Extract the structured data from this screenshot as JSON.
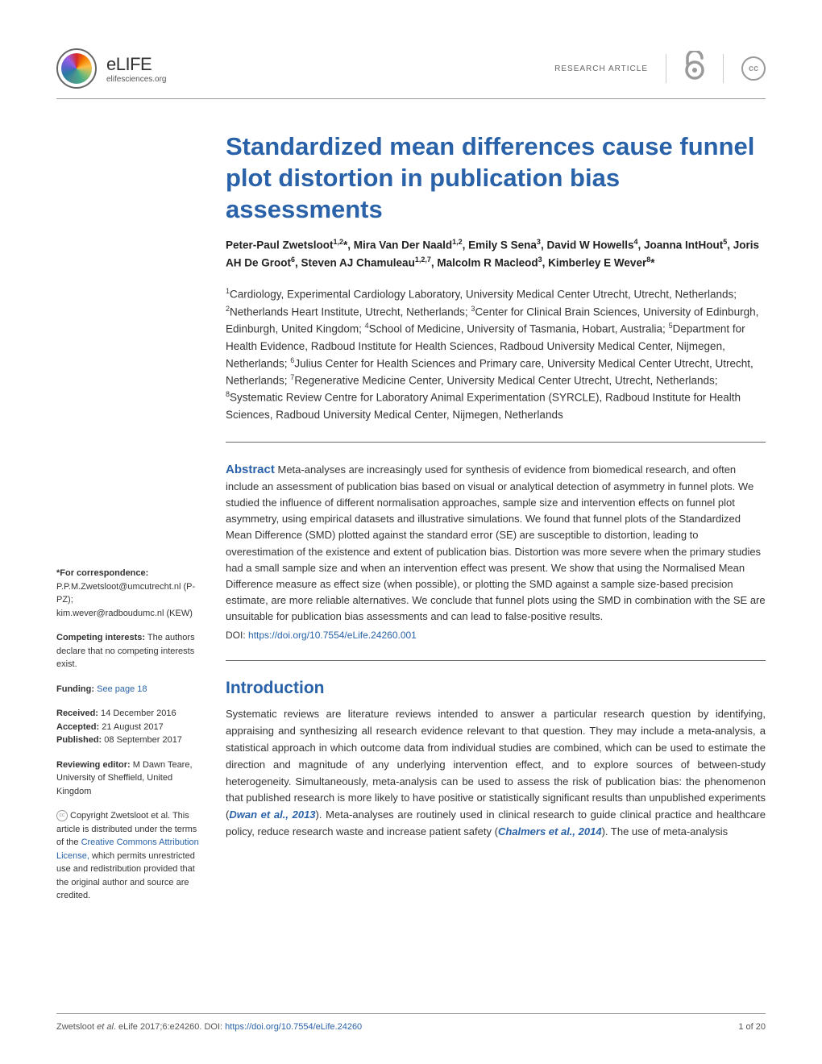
{
  "header": {
    "journal_name": "eLIFE",
    "journal_url": "elifesciences.org",
    "article_type": "RESEARCH ARTICLE",
    "cc_label": "cc"
  },
  "title": "Standardized mean differences cause funnel plot distortion in publication bias assessments",
  "authors_html": "Peter-Paul Zwetsloot<sup>1,2</sup>*, Mira Van Der Naald<sup>1,2</sup>, Emily S Sena<sup>3</sup>, David W Howells<sup>4</sup>, Joanna IntHout<sup>5</sup>, Joris AH De Groot<sup>6</sup>, Steven AJ Chamuleau<sup>1,2,7</sup>, Malcolm R Macleod<sup>3</sup>, Kimberley E Wever<sup>8</sup>*",
  "affiliations_html": "<sup>1</sup>Cardiology, Experimental Cardiology Laboratory, University Medical Center Utrecht, Utrecht, Netherlands; <sup>2</sup>Netherlands Heart Institute, Utrecht, Netherlands; <sup>3</sup>Center for Clinical Brain Sciences, University of Edinburgh, Edinburgh, United Kingdom; <sup>4</sup>School of Medicine, University of Tasmania, Hobart, Australia; <sup>5</sup>Department for Health Evidence, Radboud Institute for Health Sciences, Radboud University Medical Center, Nijmegen, Netherlands; <sup>6</sup>Julius Center for Health Sciences and Primary care, University Medical Center Utrecht, Utrecht, Netherlands; <sup>7</sup>Regenerative Medicine Center, University Medical Center Utrecht, Utrecht, Netherlands; <sup>8</sup>Systematic Review Centre for Laboratory Animal Experimentation (SYRCLE), Radboud Institute for Health Sciences, Radboud University Medical Center, Nijmegen, Netherlands",
  "abstract": {
    "label": "Abstract",
    "text": "Meta-analyses are increasingly used for synthesis of evidence from biomedical research, and often include an assessment of publication bias based on visual or analytical detection of asymmetry in funnel plots. We studied the influence of different normalisation approaches, sample size and intervention effects on funnel plot asymmetry, using empirical datasets and illustrative simulations. We found that funnel plots of the Standardized Mean Difference (SMD) plotted against the standard error (SE) are susceptible to distortion, leading to overestimation of the existence and extent of publication bias. Distortion was more severe when the primary studies had a small sample size and when an intervention effect was present. We show that using the Normalised Mean Difference measure as effect size (when possible), or plotting the SMD against a sample size-based precision estimate, are more reliable alternatives. We conclude that funnel plots using the SMD in combination with the SE are unsuitable for publication bias assessments and can lead to false-positive results."
  },
  "doi": {
    "label": "DOI:",
    "url": "https://doi.org/10.7554/eLife.24260.001"
  },
  "introduction": {
    "heading": "Introduction",
    "body_html": "Systematic reviews are literature reviews intended to answer a particular research question by identifying, appraising and synthesizing all research evidence relevant to that question. They may include a meta-analysis, a statistical approach in which outcome data from individual studies are combined, which can be used to estimate the direction and magnitude of any underlying intervention effect, and to explore sources of between-study heterogeneity. Simultaneously, meta-analysis can be used to assess the risk of publication bias: the phenomenon that published research is more likely to have positive or statistically significant results than unpublished experiments (<span class='cite'>Dwan et al., 2013</span>). Meta-analyses are routinely used in clinical research to guide clinical practice and healthcare policy, reduce research waste and increase patient safety (<span class='cite'>Chalmers et al., 2014</span>). The use of meta-analysis"
  },
  "sidebar": {
    "correspondence": {
      "label": "*For correspondence:",
      "line1": "P.P.M.Zwetsloot@umcutrecht.nl (P-PZ);",
      "line2": "kim.wever@radboudumc.nl (KEW)"
    },
    "competing": {
      "label": "Competing interests:",
      "text": "The authors declare that no competing interests exist."
    },
    "funding": {
      "label": "Funding:",
      "link": "See page 18"
    },
    "dates": {
      "received_label": "Received:",
      "received": "14 December 2016",
      "accepted_label": "Accepted:",
      "accepted": "21 August 2017",
      "published_label": "Published:",
      "published": "08 September 2017"
    },
    "reviewing": {
      "label": "Reviewing editor:",
      "text": "M Dawn Teare, University of Sheffield, United Kingdom"
    },
    "copyright": {
      "prefix": "Copyright Zwetsloot et al. This article is distributed under the terms of the ",
      "link": "Creative Commons Attribution License,",
      "suffix": " which permits unrestricted use and redistribution provided that the original author and source are credited."
    }
  },
  "footer": {
    "citation_prefix": "Zwetsloot ",
    "citation_etal": "et al",
    "citation_mid": ". eLife 2017;6:e24260. DOI: ",
    "citation_doi": "https://doi.org/10.7554/eLife.24260",
    "page": "1 of 20"
  }
}
